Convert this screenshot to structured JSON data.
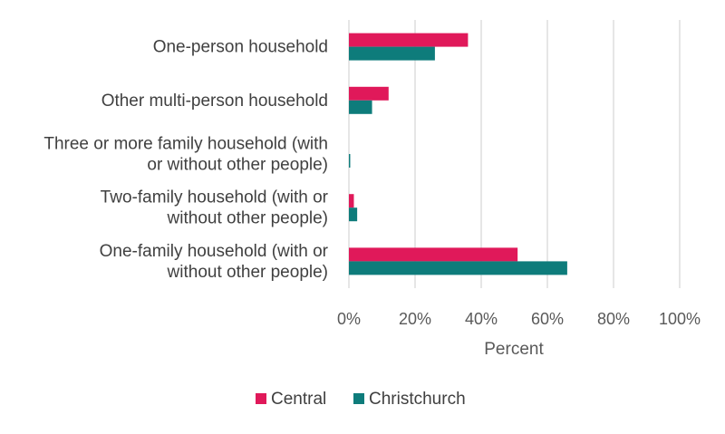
{
  "chart_data": {
    "type": "bar",
    "orientation": "horizontal",
    "categories": [
      "One-person household",
      "Other multi-person household",
      "Three or more family household (with or without other people)",
      "Two-family household (with or without other people)",
      "One-family household (with or without other people)"
    ],
    "category_lines": [
      [
        "One-person household"
      ],
      [
        "Other multi-person household"
      ],
      [
        "Three or more family household (with",
        "or without other people)"
      ],
      [
        "Two-family household (with or",
        "without other people)"
      ],
      [
        "One-family household (with or",
        "without other people)"
      ]
    ],
    "series": [
      {
        "name": "Central",
        "color": "#E0195A",
        "values": [
          36,
          12,
          0,
          1.5,
          51
        ]
      },
      {
        "name": "Christchurch",
        "color": "#0E7C7B",
        "values": [
          26,
          7,
          0.4,
          2.5,
          66
        ]
      }
    ],
    "xlabel": "Percent",
    "xlim": [
      0,
      100
    ],
    "xticks": [
      "0%",
      "20%",
      "40%",
      "60%",
      "80%",
      "100%"
    ],
    "grid": true,
    "legend_position": "bottom"
  }
}
